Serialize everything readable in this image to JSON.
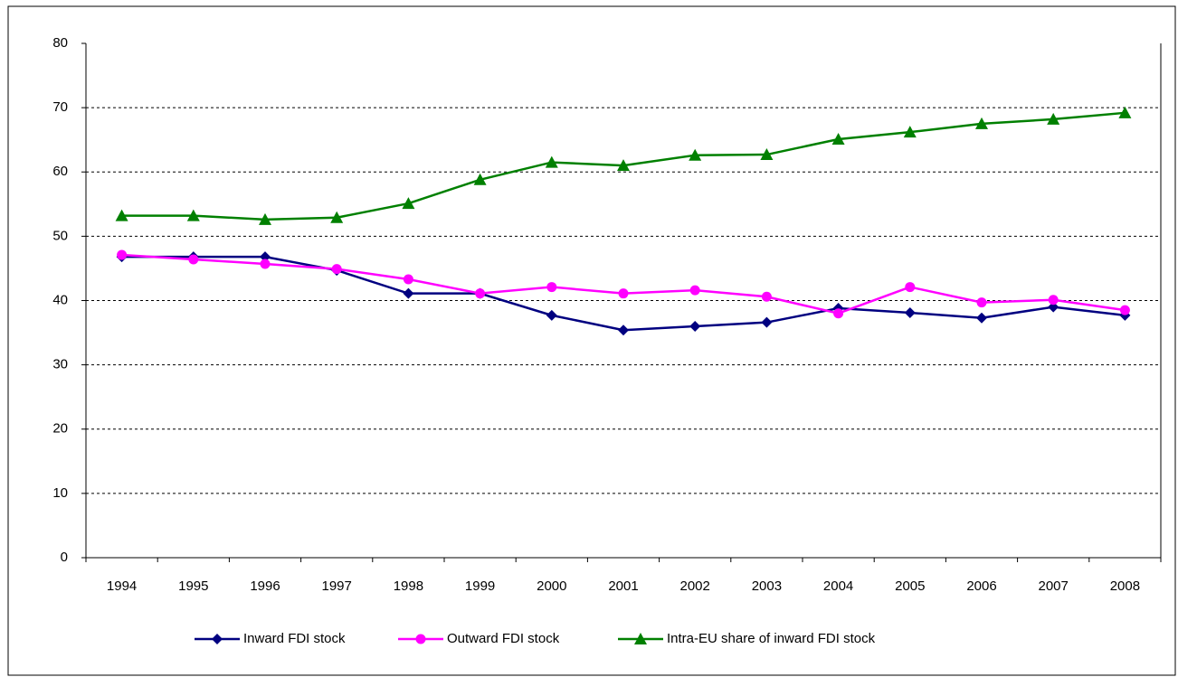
{
  "chart_data": {
    "type": "line",
    "categories": [
      "1994",
      "1995",
      "1996",
      "1997",
      "1998",
      "1999",
      "2000",
      "2001",
      "2002",
      "2003",
      "2004",
      "2005",
      "2006",
      "2007",
      "2008"
    ],
    "series": [
      {
        "name": "Inward FDI stock",
        "color": "#000080",
        "marker": "diamond",
        "values": [
          46.8,
          46.8,
          46.8,
          44.7,
          41.1,
          41.1,
          37.7,
          35.4,
          36.0,
          36.6,
          38.8,
          38.1,
          37.3,
          39.0,
          37.7
        ]
      },
      {
        "name": "Outward FDI stock",
        "color": "#ff00ff",
        "marker": "circle",
        "values": [
          47.1,
          46.4,
          45.7,
          44.9,
          43.3,
          41.1,
          42.1,
          41.1,
          41.6,
          40.6,
          38.0,
          42.1,
          39.7,
          40.1,
          38.5
        ]
      },
      {
        "name": "Intra-EU share of inward FDI stock",
        "color": "#008000",
        "marker": "triangle",
        "values": [
          53.2,
          53.2,
          52.6,
          52.9,
          55.1,
          58.8,
          61.5,
          61.0,
          62.6,
          62.7,
          65.1,
          66.2,
          67.5,
          68.2,
          69.2
        ]
      }
    ],
    "ylim": [
      0,
      80
    ],
    "yticks": [
      0,
      10,
      20,
      30,
      40,
      50,
      60,
      70,
      80
    ],
    "grid": true,
    "legend": "bottom"
  }
}
